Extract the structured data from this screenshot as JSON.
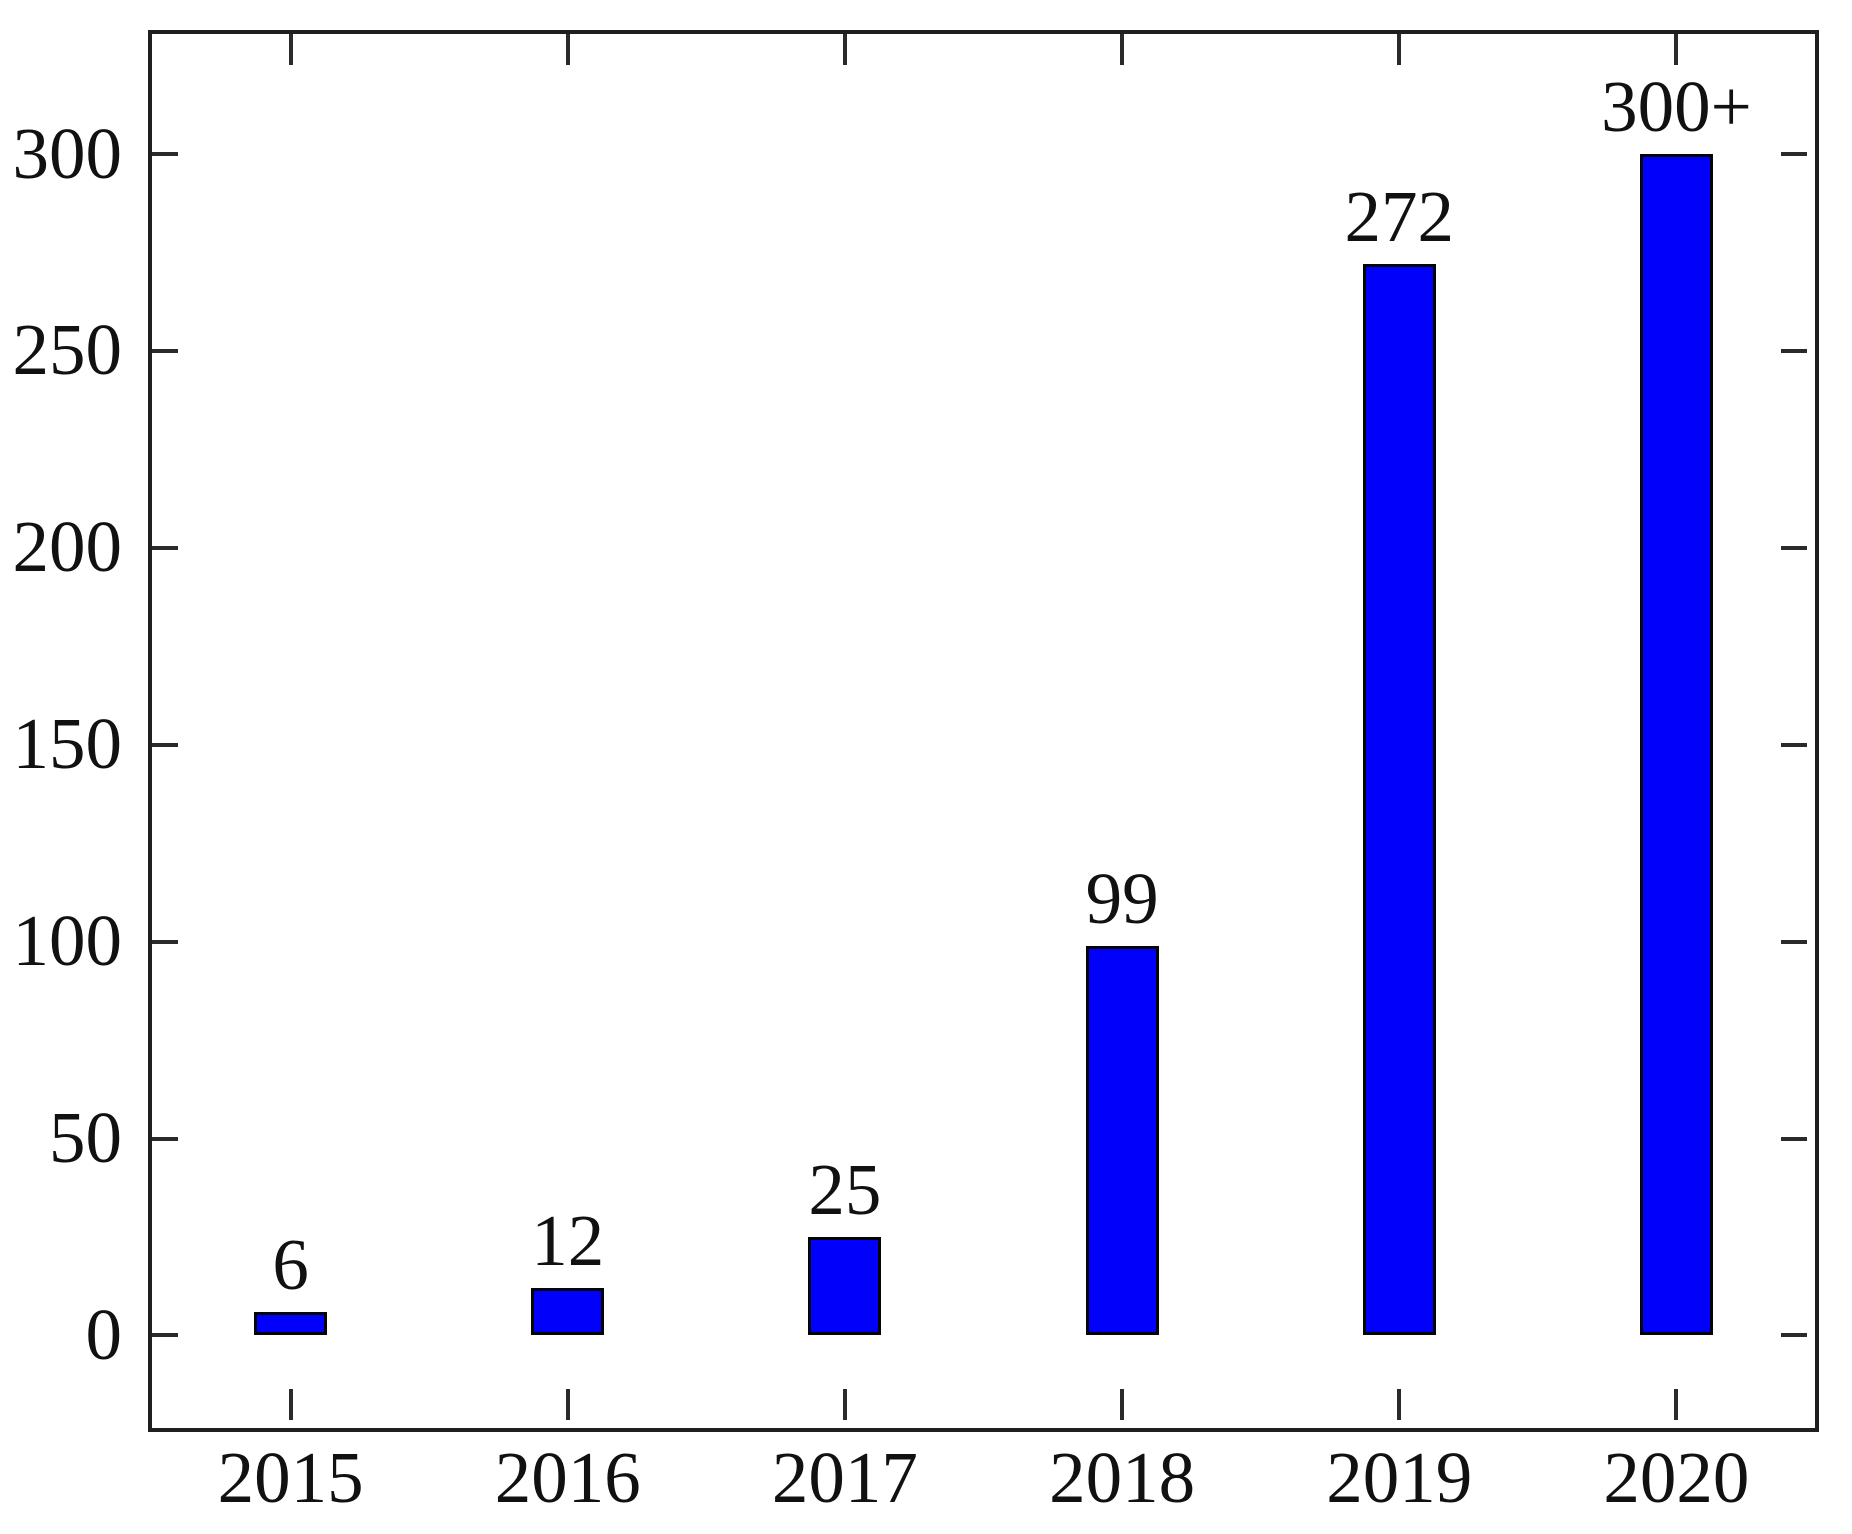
{
  "chart_data": {
    "type": "bar",
    "title": "",
    "xlabel": "",
    "ylabel": "",
    "categories": [
      "2015",
      "2016",
      "2017",
      "2018",
      "2019",
      "2020"
    ],
    "values": [
      6,
      12,
      25,
      99,
      272,
      300
    ],
    "bar_labels": [
      "6",
      "12",
      "25",
      "99",
      "272",
      "300+"
    ],
    "yticks": [
      0,
      50,
      100,
      150,
      200,
      250,
      300
    ],
    "ytick_labels": [
      "0",
      "50",
      "100",
      "150",
      "200",
      "250",
      "300"
    ],
    "ylim": [
      -23.5,
      330.5
    ],
    "grid": false,
    "legend_position": "none",
    "colors": {
      "bar_fill": "#0101fb",
      "bar_border": "#050505",
      "axis_border": "#1f1f1f",
      "tick": "#2a2a2a",
      "text": "#111111",
      "background": "#ffffff"
    }
  }
}
